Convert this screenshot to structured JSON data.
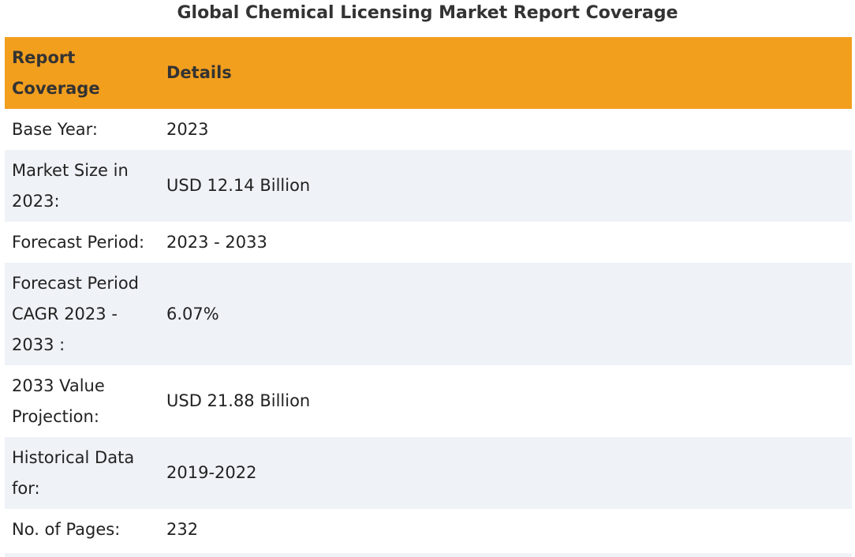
{
  "title": "Global Chemical Licensing Market Report Coverage",
  "table": {
    "headers": [
      "Report Coverage",
      "Details"
    ],
    "rows": [
      {
        "label": "Base Year:",
        "value": "2023"
      },
      {
        "label": "Market Size in 2023:",
        "value": "USD 12.14 Billion"
      },
      {
        "label": "Forecast Period:",
        "value": "2023 - 2033"
      },
      {
        "label": "Forecast Period CAGR 2023 - 2033 :",
        "value": "6.07%"
      },
      {
        "label": "2033 Value Projection:",
        "value": "USD 21.88 Billion"
      },
      {
        "label": "Historical Data for:",
        "value": "2019-2022"
      },
      {
        "label": "No. of Pages:",
        "value": "232"
      }
    ]
  },
  "colors": {
    "header_bg": "#f29f1e",
    "stripe_bg": "#eff2f6"
  }
}
